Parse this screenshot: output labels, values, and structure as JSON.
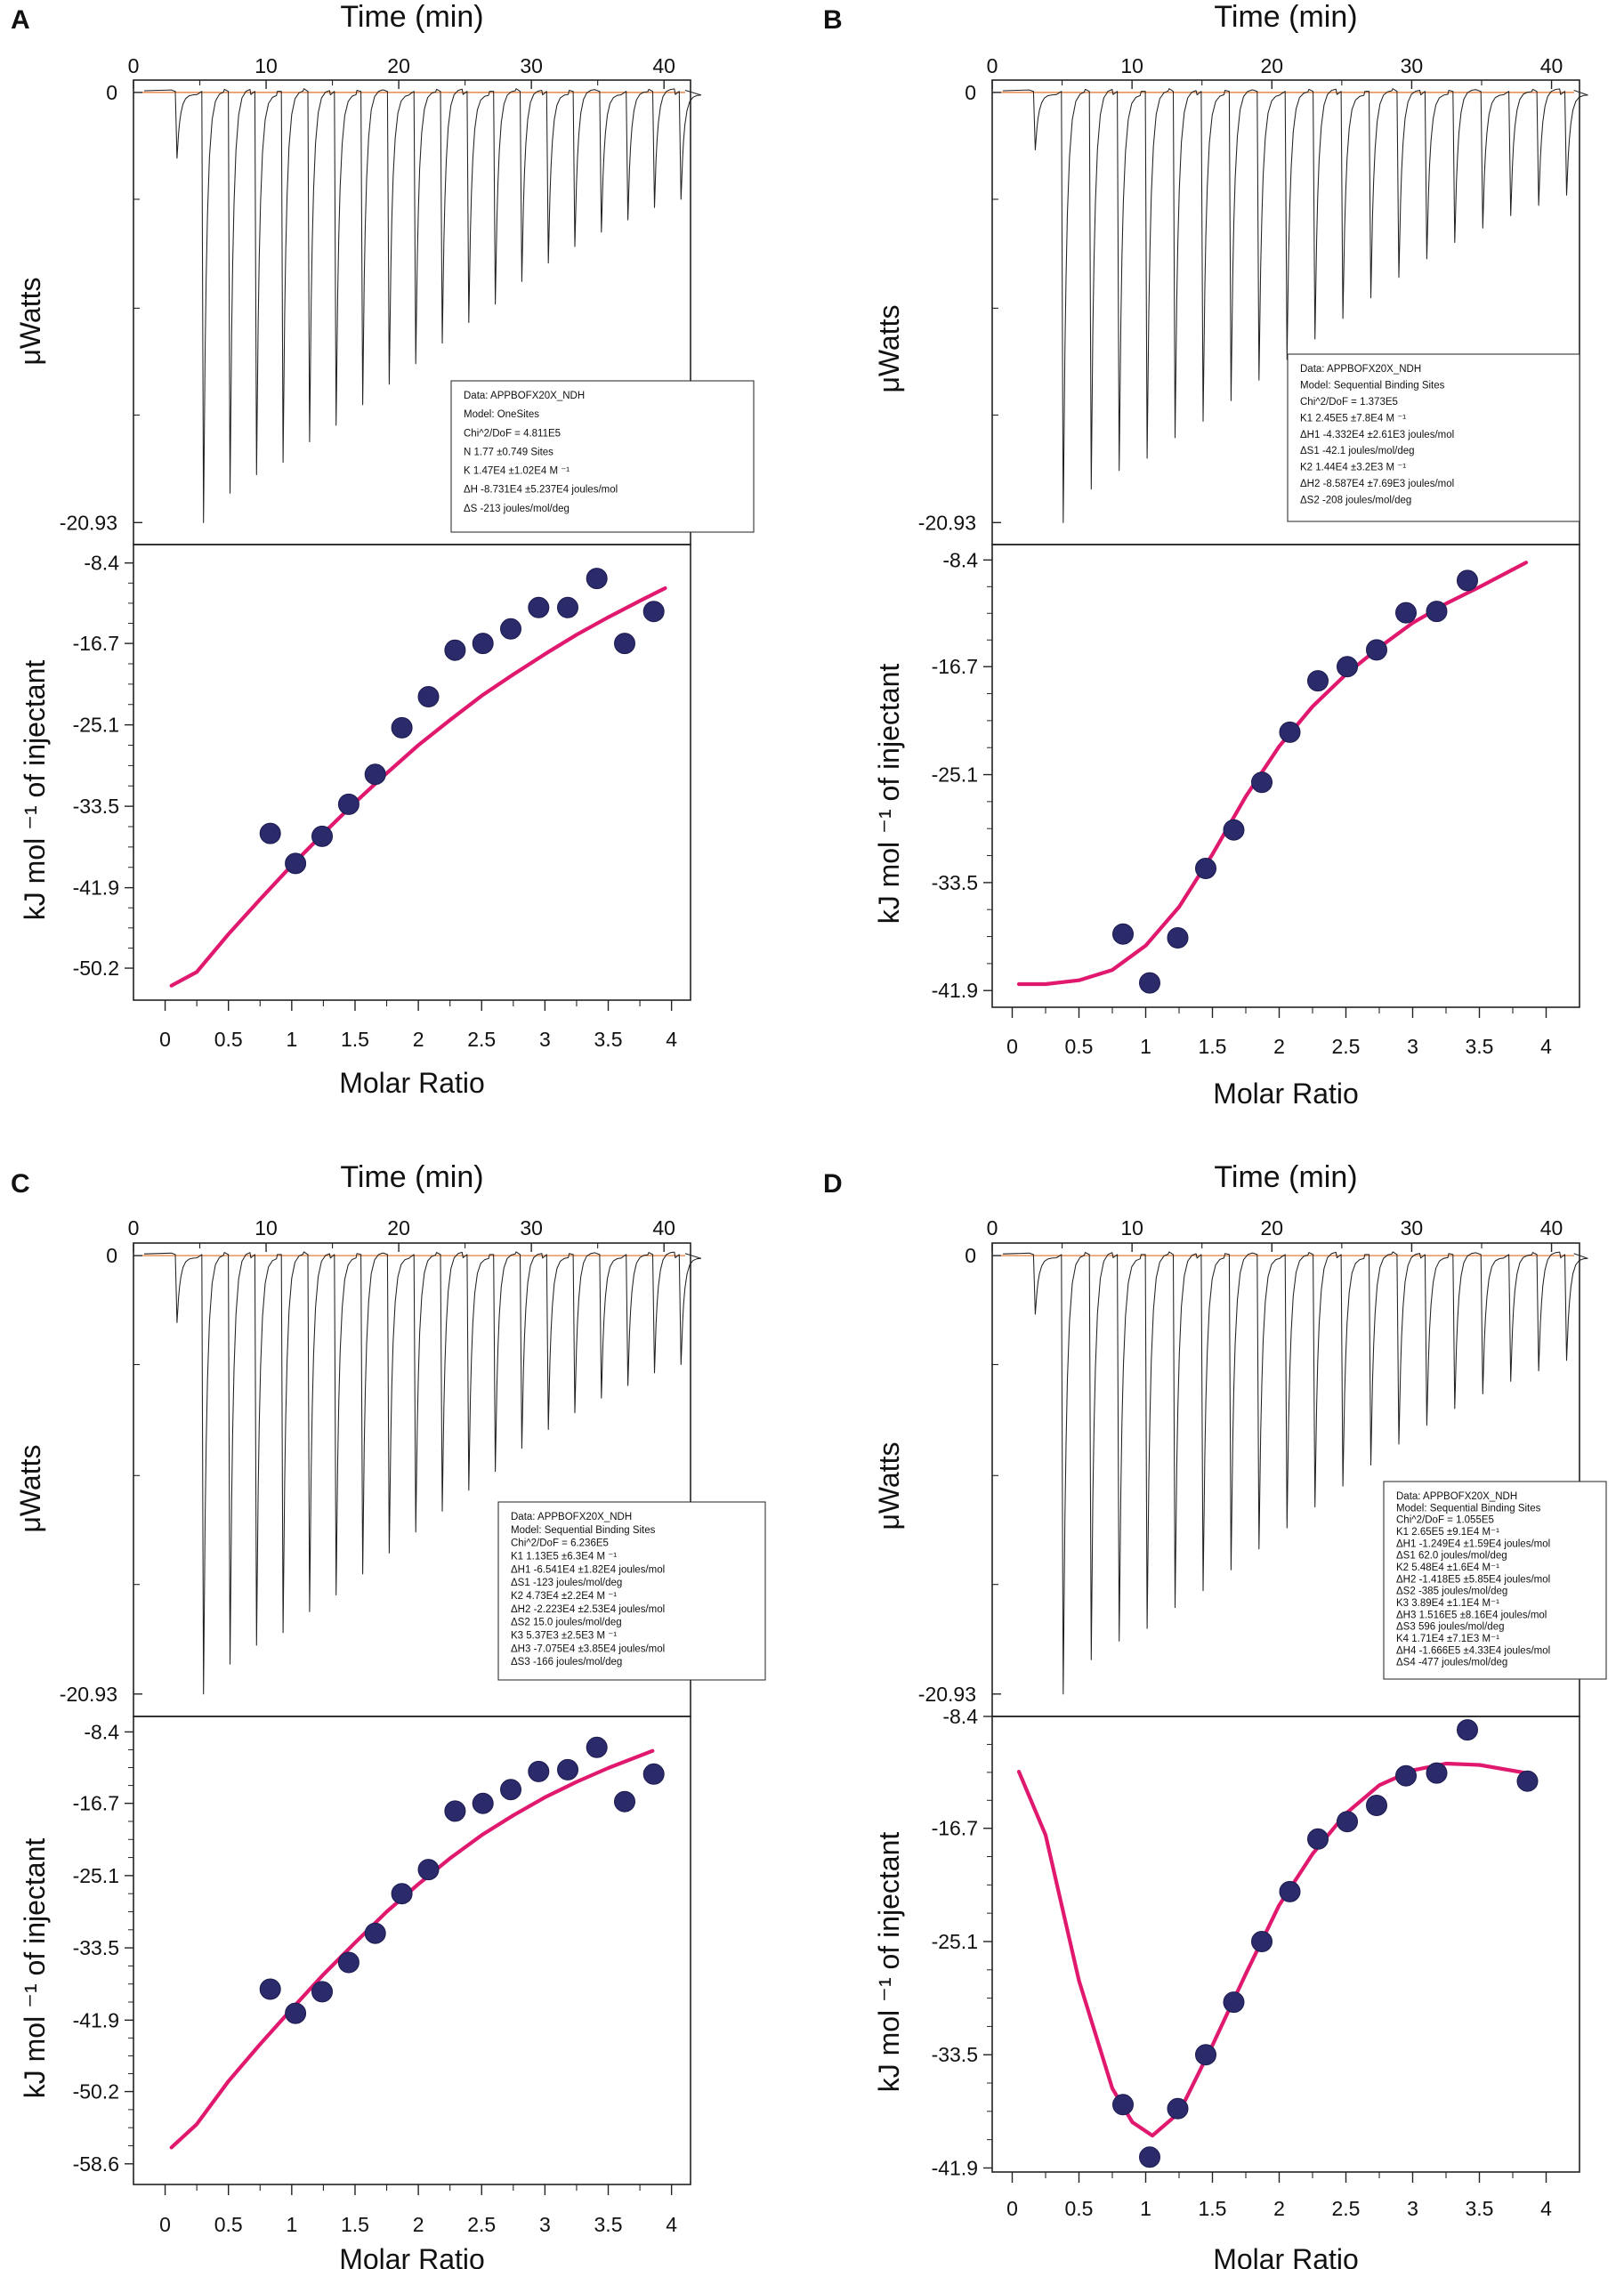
{
  "figure": {
    "panels": [
      {
        "label": "A",
        "raw": {
          "title": "Time (min)",
          "ylabel": "μWatts",
          "x_ticks": [
            "0",
            "10",
            "20",
            "30",
            "40"
          ],
          "y_ticks": [
            "0",
            "-20.93"
          ],
          "xlim": [
            0,
            42
          ],
          "ylim": [
            -22,
            0.6
          ],
          "first_peak_min": 3.2,
          "peak_spacing_min": 2,
          "peak_depths_uW": [
            -3.2,
            -20.93,
            -19.5,
            -18.6,
            -18.0,
            -17.0,
            -16.2,
            -15.2,
            -14.2,
            -13.2,
            -12.2,
            -11.2,
            -10.3,
            -9.2,
            -8.3,
            -7.5,
            -6.8,
            -6.2,
            -5.6,
            -5.2
          ]
        },
        "legend": [
          "Data: APPBOFX20X_NDH",
          "Model: OneSites",
          "Chi^2/DoF = 4.811E5",
          "N          1.77       ±0.749 Sites",
          "K          1.47E4   ±1.02E4 M ⁻¹",
          "ΔH        -8.731E4         ±5.237E4 joules/mol",
          "ΔS        -213 joules/mol/deg"
        ],
        "chart_data": {
          "type": "scatter",
          "xlabel": "Molar Ratio",
          "ylabel": "kJ mol ⁻¹ of injectant",
          "x_ticks": [
            "0",
            "0.5",
            "1",
            "1.5",
            "2",
            "2.5",
            "3",
            "3.5",
            "4"
          ],
          "y_ticks": [
            "-8.4",
            "-16.7",
            "-25.1",
            "-33.5",
            "-41.9",
            "-50.2"
          ],
          "xlim": [
            -0.25,
            4.15
          ],
          "ylim": [
            -53.5,
            -6.5
          ],
          "series": [
            {
              "name": "Integrated heats",
              "x": [
                0.83,
                1.03,
                1.24,
                1.45,
                1.66,
                1.87,
                2.08,
                2.29,
                2.51,
                2.73,
                2.95,
                3.18,
                3.41,
                3.63,
                3.86
              ],
              "y": [
                -36.3,
                -39.4,
                -36.6,
                -33.3,
                -30.2,
                -25.4,
                -22.2,
                -17.4,
                -16.7,
                -15.2,
                -13.0,
                -13.0,
                -10.0,
                -16.7,
                -13.4
              ]
            },
            {
              "name": "Fit",
              "x": [
                0.05,
                0.25,
                0.5,
                0.75,
                1.0,
                1.25,
                1.5,
                1.75,
                2.0,
                2.25,
                2.5,
                2.75,
                3.0,
                3.25,
                3.5,
                3.75,
                3.95
              ],
              "y": [
                -52.0,
                -50.6,
                -46.7,
                -43.1,
                -39.6,
                -36.3,
                -33.1,
                -30.1,
                -27.2,
                -24.6,
                -22.1,
                -19.9,
                -17.8,
                -15.8,
                -14.0,
                -12.3,
                -11.0
              ]
            }
          ]
        }
      },
      {
        "label": "B",
        "raw": {
          "title": "Time (min)",
          "ylabel": "μWatts",
          "x_ticks": [
            "0",
            "10",
            "20",
            "30",
            "40"
          ],
          "y_ticks": [
            "0",
            "-20.93"
          ],
          "xlim": [
            0,
            42
          ],
          "ylim": [
            -22,
            0.6
          ],
          "first_peak_min": 3.0,
          "peak_spacing_min": 2,
          "peak_depths_uW": [
            -2.8,
            -20.93,
            -19.3,
            -18.4,
            -17.8,
            -16.8,
            -16.0,
            -15.0,
            -14.0,
            -13.0,
            -12.0,
            -11.0,
            -10.0,
            -9.0,
            -8.1,
            -7.3,
            -6.6,
            -6.0,
            -5.5,
            -5.0
          ]
        },
        "legend": [
          "Data: APPBOFX20X_NDH",
          "Model: Sequential Binding Sites",
          "Chi^2/DoF = 1.373E5",
          "K1       2.45E5   ±7.8E4 M ⁻¹",
          "ΔH1     -4.332E4         ±2.61E3 joules/mol",
          "ΔS1     -42.1 joules/mol/deg",
          "K2       1.44E4   ±3.2E3 M ⁻¹",
          "ΔH2     -8.587E4         ±7.69E3 joules/mol",
          "ΔS2     -208 joules/mol/deg"
        ],
        "chart_data": {
          "type": "scatter",
          "xlabel": "Molar Ratio",
          "ylabel": "kJ mol ⁻¹ of injectant",
          "x_ticks": [
            "0",
            "0.5",
            "1",
            "1.5",
            "2",
            "2.5",
            "3",
            "3.5",
            "4"
          ],
          "y_ticks": [
            "-8.4",
            "-16.7",
            "-25.1",
            "-33.5",
            "-41.9"
          ],
          "xlim": [
            -0.15,
            4.25
          ],
          "ylim": [
            -43.2,
            -7.2
          ],
          "series": [
            {
              "name": "Integrated heats",
              "x": [
                0.83,
                1.03,
                1.24,
                1.45,
                1.66,
                1.87,
                2.08,
                2.29,
                2.51,
                2.73,
                2.95,
                3.18,
                3.41
              ],
              "y": [
                -37.5,
                -41.3,
                -37.8,
                -32.4,
                -29.4,
                -25.7,
                -21.8,
                -17.8,
                -16.7,
                -15.4,
                -12.5,
                -12.4,
                -10.0
              ]
            },
            {
              "name": "Fit",
              "x": [
                0.05,
                0.25,
                0.5,
                0.75,
                1.0,
                1.25,
                1.5,
                1.75,
                2.0,
                2.25,
                2.5,
                2.75,
                3.0,
                3.25,
                3.5,
                3.85
              ],
              "y": [
                -41.4,
                -41.4,
                -41.1,
                -40.3,
                -38.4,
                -35.4,
                -31.3,
                -26.8,
                -22.9,
                -19.8,
                -17.3,
                -15.2,
                -13.3,
                -11.8,
                -10.5,
                -8.6
              ]
            }
          ]
        }
      },
      {
        "label": "C",
        "raw": {
          "title": "Time (min)",
          "ylabel": "μWatts",
          "x_ticks": [
            "0",
            "10",
            "20",
            "30",
            "40"
          ],
          "y_ticks": [
            "0",
            "-20.93"
          ],
          "xlim": [
            0,
            42
          ],
          "ylim": [
            -22,
            0.6
          ],
          "first_peak_min": 3.2,
          "peak_spacing_min": 2,
          "peak_depths_uW": [
            -3.2,
            -20.93,
            -19.5,
            -18.6,
            -18.0,
            -17.0,
            -16.2,
            -15.2,
            -14.2,
            -13.2,
            -12.2,
            -11.2,
            -10.3,
            -9.2,
            -8.3,
            -7.5,
            -6.8,
            -6.2,
            -5.6,
            -5.2
          ]
        },
        "legend": [
          "Data: APPBOFX20X_NDH",
          "Model: Sequential Binding Sites",
          "Chi^2/DoF = 6.236E5",
          "K1       1.13E5  ±6.3E4 M ⁻¹",
          "ΔH1     -6.541E4         ±1.82E4 joules/mol",
          "ΔS1     -123 joules/mol/deg",
          "K2       4.73E4  ±2.2E4 M ⁻¹",
          "ΔH2     -2.223E4         ±2.53E4 joules/mol",
          "ΔS2     15.0 joules/mol/deg",
          "K3       5.37E3  ±2.5E3 M ⁻¹",
          "ΔH3     -7.075E4         ±3.85E4 joules/mol",
          "ΔS3     -166 joules/mol/deg"
        ],
        "chart_data": {
          "type": "scatter",
          "xlabel": "Molar Ratio",
          "ylabel": "kJ mol ⁻¹ of injectant",
          "x_ticks": [
            "0",
            "0.5",
            "1",
            "1.5",
            "2",
            "2.5",
            "3",
            "3.5",
            "4"
          ],
          "y_ticks": [
            "-8.4",
            "-16.7",
            "-25.1",
            "-33.5",
            "-41.9",
            "-50.2",
            "-58.6"
          ],
          "xlim": [
            -0.25,
            4.15
          ],
          "ylim": [
            -61.0,
            -6.6
          ],
          "series": [
            {
              "name": "Integrated heats",
              "x": [
                0.83,
                1.03,
                1.24,
                1.45,
                1.66,
                1.87,
                2.08,
                2.29,
                2.51,
                2.73,
                2.95,
                3.18,
                3.41,
                3.63,
                3.86
              ],
              "y": [
                -38.3,
                -41.1,
                -38.6,
                -35.2,
                -31.8,
                -27.2,
                -24.4,
                -17.6,
                -16.7,
                -15.1,
                -13.0,
                -12.8,
                -10.2,
                -16.5,
                -13.3
              ]
            },
            {
              "name": "Fit",
              "x": [
                0.05,
                0.25,
                0.5,
                0.75,
                1.0,
                1.25,
                1.5,
                1.75,
                2.0,
                2.25,
                2.5,
                2.75,
                3.0,
                3.25,
                3.5,
                3.85
              ],
              "y": [
                -56.7,
                -54.0,
                -49.0,
                -44.7,
                -40.6,
                -36.6,
                -32.9,
                -29.3,
                -26.1,
                -23.1,
                -20.4,
                -18.1,
                -16.0,
                -14.2,
                -12.6,
                -10.6
              ]
            }
          ]
        }
      },
      {
        "label": "D",
        "raw": {
          "title": "Time (min)",
          "ylabel": "μWatts",
          "x_ticks": [
            "0",
            "10",
            "20",
            "30",
            "40"
          ],
          "y_ticks": [
            "0",
            "-20.93"
          ],
          "xlim": [
            0,
            42
          ],
          "ylim": [
            -22,
            0.6
          ],
          "first_peak_min": 3.0,
          "peak_spacing_min": 2,
          "peak_depths_uW": [
            -2.8,
            -20.93,
            -19.3,
            -18.4,
            -17.8,
            -16.8,
            -16.0,
            -15.0,
            -14.0,
            -13.0,
            -12.0,
            -11.0,
            -10.0,
            -9.0,
            -8.1,
            -7.3,
            -6.6,
            -6.0,
            -5.5,
            -5.0
          ]
        },
        "legend": [
          "Data: APPBOFX20X_NDH",
          "Model: Sequential Binding Sites",
          "Chi^2/DoF = 1.055E5",
          "K1     2.65E5 ±9.1E4 M⁻¹",
          "ΔH1   -1.249E4          ±1.59E4 joules/mol",
          "ΔS1    62.0 joules/mol/deg",
          "K2     5.48E4 ±1.6E4 M⁻¹",
          "ΔH2   -1.418E5          ±5.85E4 joules/mol",
          "ΔS2   -385 joules/mol/deg",
          "K3     3.89E4 ±1.1E4 M⁻¹",
          "ΔH3    1.516E5          ±8.16E4 joules/mol",
          "ΔS3    596 joules/mol/deg",
          "K4     1.71E4 ±7.1E3 M⁻¹",
          "ΔH4   -1.666E5          ±4.33E4 joules/mol",
          "ΔS4   -477 joules/mol/deg"
        ],
        "chart_data": {
          "type": "scatter",
          "xlabel": "Molar Ratio",
          "ylabel": "kJ mol ⁻¹ of injectant",
          "x_ticks": [
            "0",
            "0.5",
            "1",
            "1.5",
            "2",
            "2.5",
            "3",
            "3.5",
            "4"
          ],
          "y_ticks": [
            "-8.4",
            "-16.7",
            "-25.1",
            "-33.5",
            "-41.9"
          ],
          "xlim": [
            -0.15,
            4.25
          ],
          "ylim": [
            -42.2,
            -8.4
          ],
          "series": [
            {
              "name": "Integrated heats",
              "x": [
                0.83,
                1.03,
                1.24,
                1.45,
                1.66,
                1.87,
                2.08,
                2.29,
                2.51,
                2.73,
                2.95,
                3.18,
                3.41,
                3.86
              ],
              "y": [
                -37.2,
                -41.1,
                -37.5,
                -33.5,
                -29.6,
                -25.1,
                -21.4,
                -17.5,
                -16.2,
                -15.0,
                -12.8,
                -12.6,
                -9.4,
                -13.2
              ]
            },
            {
              "name": "Fit",
              "x": [
                0.05,
                0.25,
                0.5,
                0.75,
                0.9,
                1.05,
                1.25,
                1.5,
                1.75,
                2.0,
                2.25,
                2.5,
                2.75,
                3.0,
                3.25,
                3.5,
                3.85
              ],
              "y": [
                -12.5,
                -17.2,
                -28.0,
                -36.0,
                -38.5,
                -39.5,
                -37.8,
                -32.8,
                -27.5,
                -22.4,
                -18.6,
                -15.6,
                -13.5,
                -12.4,
                -11.9,
                -12.0,
                -12.6
              ]
            }
          ]
        }
      }
    ]
  }
}
